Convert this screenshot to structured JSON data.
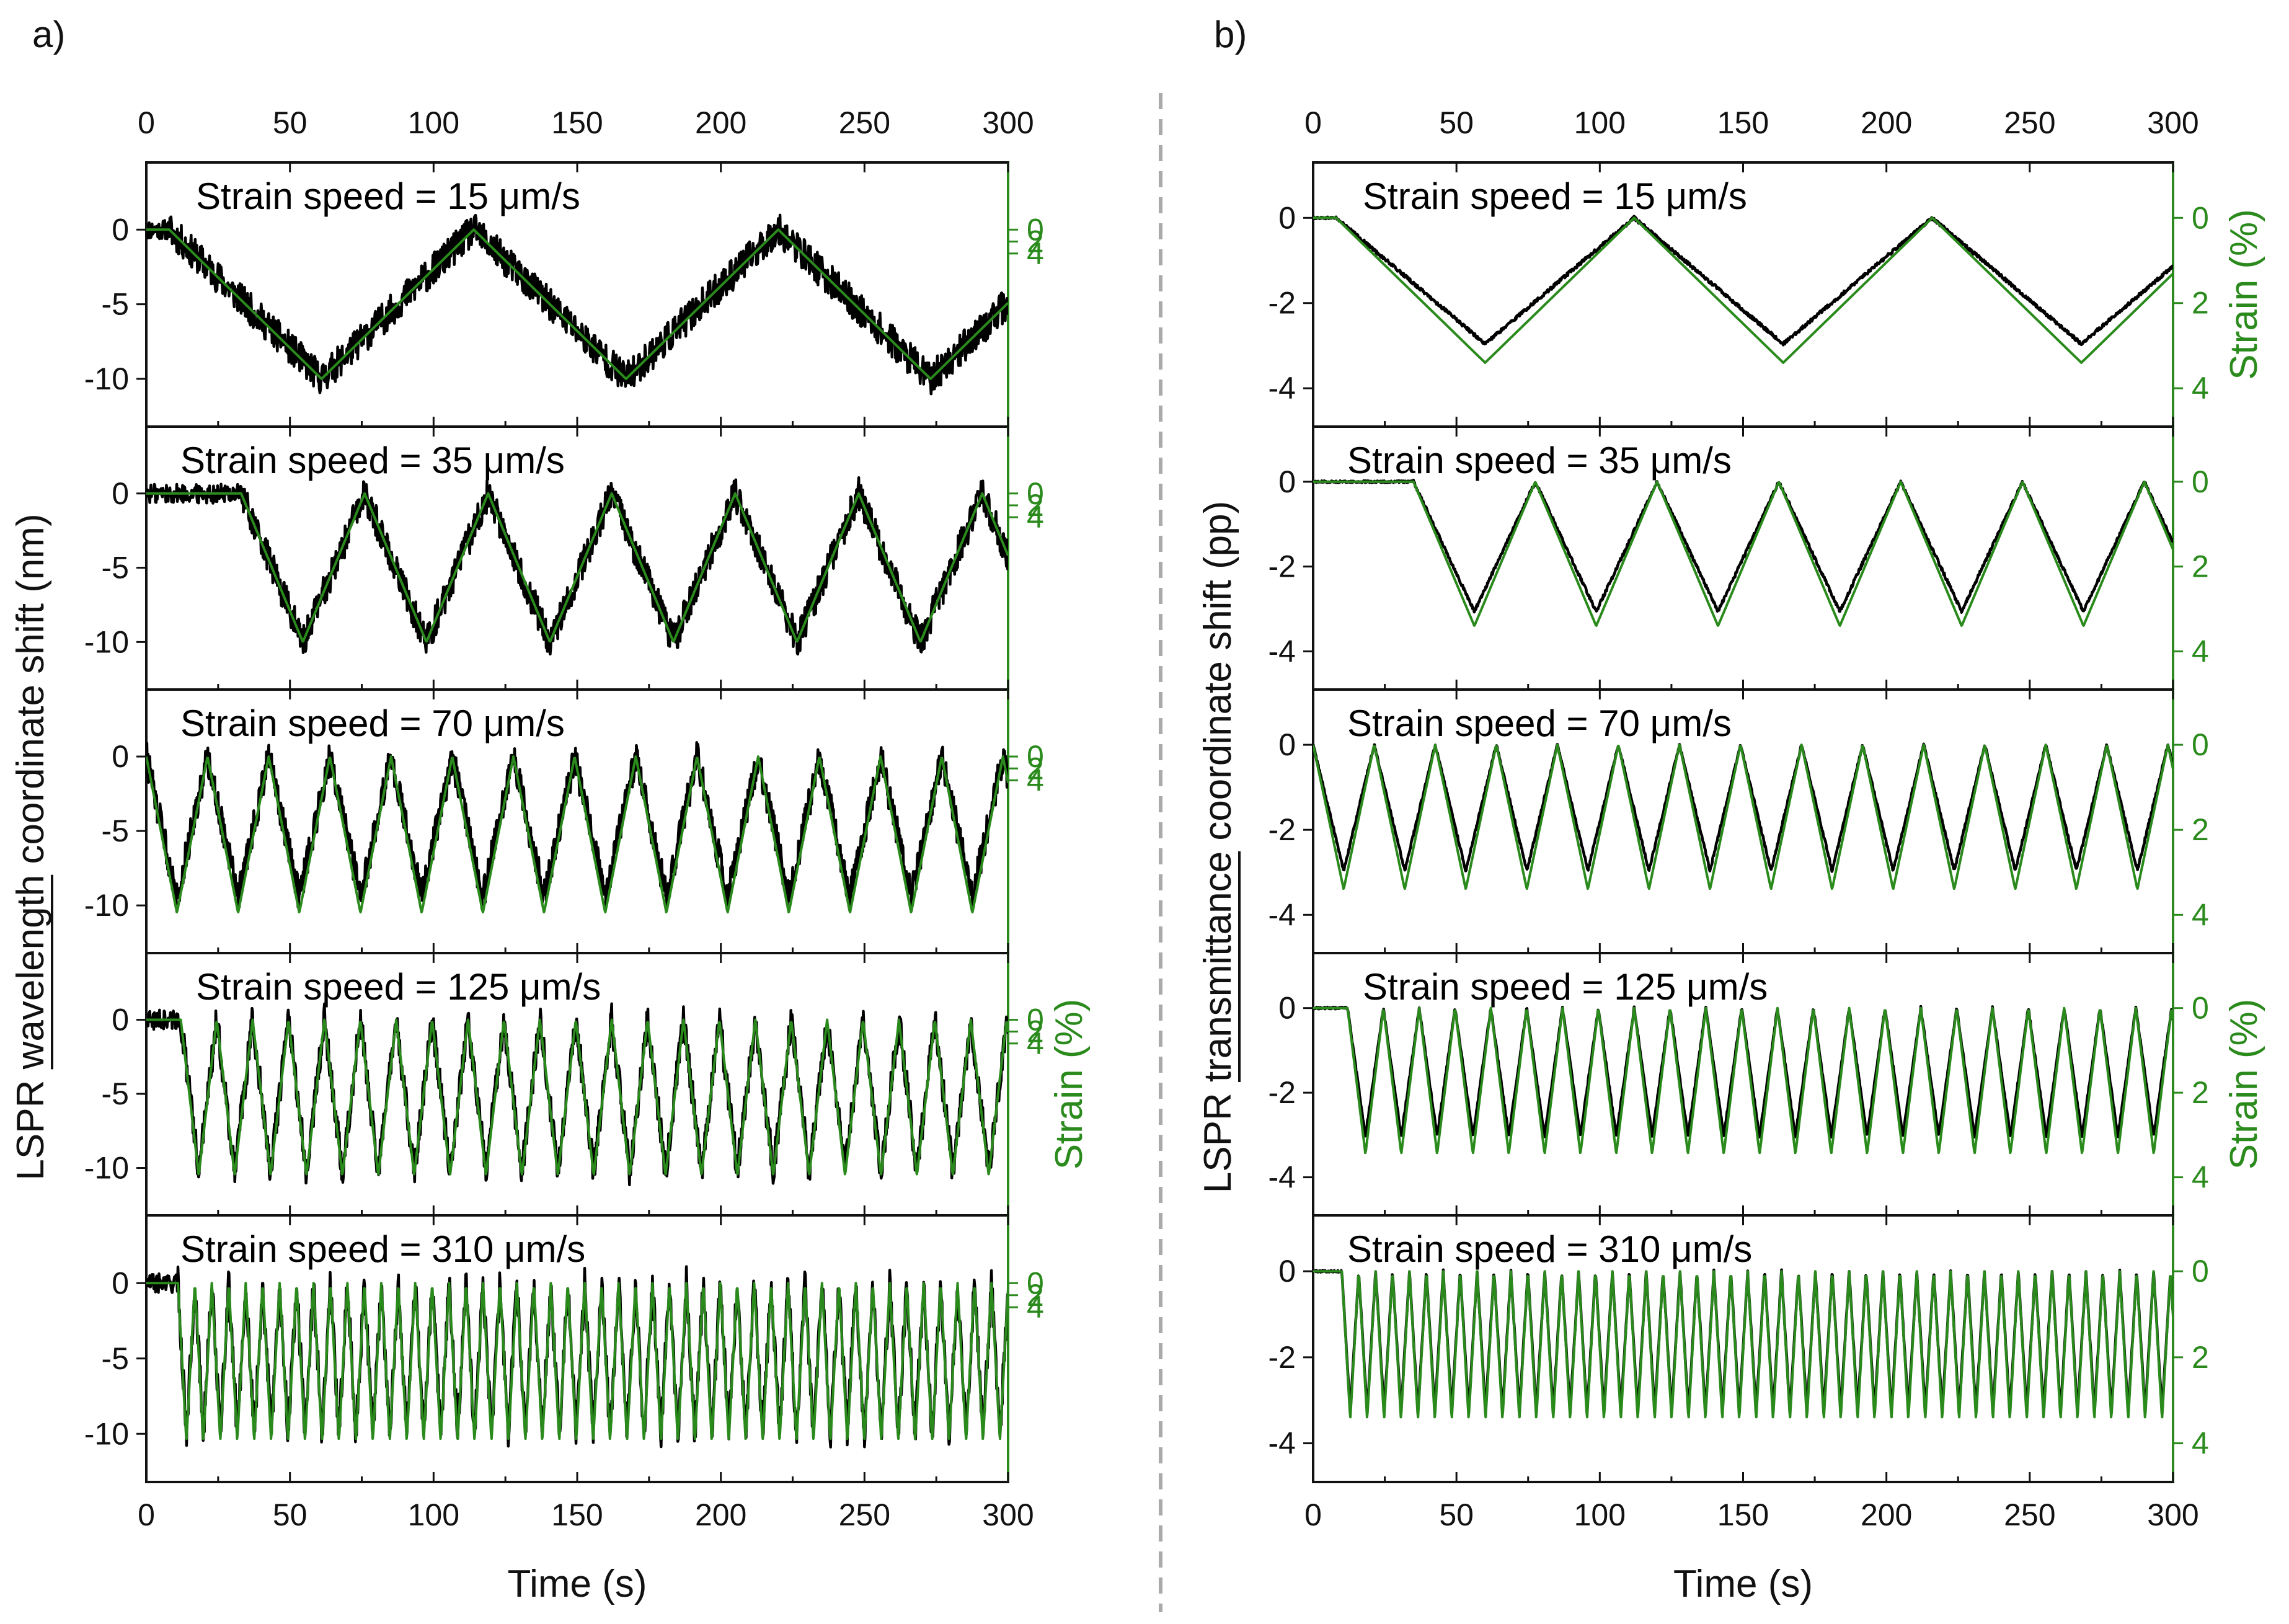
{
  "figure": {
    "separator": "dashed-vertical",
    "colors": {
      "measured": "#000000",
      "strain": "#2a8a1c",
      "separator": "#aaaaaa"
    }
  },
  "chart_data": [
    {
      "panel_label": "a)",
      "type": "line",
      "top_axis_ticks": [
        "0",
        "50",
        "100",
        "150",
        "200",
        "250",
        "300"
      ],
      "bottom_axis_ticks": [
        "0",
        "50",
        "100",
        "150",
        "200",
        "250",
        "300"
      ],
      "xlim": [
        0,
        300
      ],
      "xlabel": "Time (s)",
      "ylabel": "LSPR wavelength coordinate shift (nm)",
      "ylabel_underlined_word": "wavelength",
      "y2label": "Strain (%)",
      "y2label_visible_on": [
        3
      ],
      "ylim": [
        -13.2,
        4.5
      ],
      "yticks": [
        -10,
        -5,
        0
      ],
      "ytick_labels": [
        "-10",
        "-5",
        "0"
      ],
      "y2ticks": [
        0,
        2,
        4
      ],
      "y2tick_labels": [
        "0",
        "2",
        "4"
      ],
      "strain_per_unit": -2.5,
      "noise": 1.1,
      "subplots": [
        {
          "title": "Strain speed = 15 μm/s",
          "speed": 15,
          "onset": 8,
          "amplitude": -10.0,
          "period": 106,
          "response_ratio": 1.0,
          "series": [
            {
              "name": "LSPR shift",
              "color": "#000000"
            },
            {
              "name": "Strain",
              "color": "#2a8a1c"
            }
          ]
        },
        {
          "title": "Strain speed = 35 μm/s",
          "speed": 35,
          "onset": 33,
          "amplitude": -10.0,
          "period": 43,
          "response_ratio": 1.0,
          "series": [
            {
              "name": "LSPR shift",
              "color": "#000000"
            },
            {
              "name": "Strain",
              "color": "#2a8a1c"
            }
          ]
        },
        {
          "title": "Strain speed = 70 μm/s",
          "speed": 70,
          "onset": 0,
          "amplitude": -10.5,
          "period": 21.3,
          "response_ratio": 0.9,
          "series": [
            {
              "name": "LSPR shift",
              "color": "#000000"
            },
            {
              "name": "Strain",
              "color": "#2a8a1c"
            }
          ]
        },
        {
          "title": "Strain speed = 125 μm/s",
          "speed": 125,
          "onset": 12,
          "amplitude": -10.5,
          "period": 12.5,
          "response_ratio": 0.97,
          "series": [
            {
              "name": "LSPR shift",
              "color": "#000000"
            },
            {
              "name": "Strain",
              "color": "#2a8a1c"
            }
          ]
        },
        {
          "title": "Strain speed = 310 μm/s",
          "speed": 310,
          "onset": 11,
          "amplitude": -10.5,
          "period": 5.9,
          "response_ratio": 0.95,
          "series": [
            {
              "name": "LSPR shift",
              "color": "#000000"
            },
            {
              "name": "Strain",
              "color": "#2a8a1c"
            }
          ]
        }
      ]
    },
    {
      "panel_label": "b)",
      "type": "line",
      "top_axis_ticks": [
        "0",
        "50",
        "100",
        "150",
        "200",
        "250",
        "300"
      ],
      "bottom_axis_ticks": [
        "0",
        "50",
        "100",
        "150",
        "200",
        "250",
        "300"
      ],
      "xlim": [
        0,
        300
      ],
      "xlabel": "Time (s)",
      "ylabel": "LSPR transmittance coordinate shift (pp)",
      "ylabel_underlined_word": "transmittance",
      "y2label": "Strain (%)",
      "y2label_visible_on": [
        0,
        3
      ],
      "ylim": [
        -4.9,
        1.3
      ],
      "yticks": [
        -4,
        -2,
        0
      ],
      "ytick_labels": [
        "-4",
        "-2",
        "0"
      ],
      "y2ticks": [
        0,
        2,
        4
      ],
      "y2tick_labels": [
        "0",
        "2",
        "4"
      ],
      "strain_per_unit": -1.0,
      "noise": 0.04,
      "subplots": [
        {
          "title": "Strain speed = 15 μm/s",
          "speed": 15,
          "onset": 8,
          "amplitude": -3.4,
          "period": 104,
          "response_ratio": 0.87,
          "series": [
            {
              "name": "LSPR shift",
              "color": "#000000"
            },
            {
              "name": "Strain",
              "color": "#2a8a1c"
            }
          ]
        },
        {
          "title": "Strain speed = 35 μm/s",
          "speed": 35,
          "onset": 35,
          "amplitude": -3.4,
          "period": 42.5,
          "response_ratio": 0.9,
          "series": [
            {
              "name": "LSPR shift",
              "color": "#000000"
            },
            {
              "name": "Strain",
              "color": "#2a8a1c"
            }
          ]
        },
        {
          "title": "Strain speed = 70 μm/s",
          "speed": 70,
          "onset": 0,
          "amplitude": -3.4,
          "period": 21.3,
          "response_ratio": 0.87,
          "series": [
            {
              "name": "LSPR shift",
              "color": "#000000"
            },
            {
              "name": "Strain",
              "color": "#2a8a1c"
            }
          ]
        },
        {
          "title": "Strain speed = 125 μm/s",
          "speed": 125,
          "onset": 12,
          "amplitude": -3.45,
          "period": 12.5,
          "response_ratio": 0.88,
          "series": [
            {
              "name": "LSPR shift",
              "color": "#000000"
            },
            {
              "name": "Strain",
              "color": "#2a8a1c"
            }
          ]
        },
        {
          "title": "Strain speed = 310 μm/s",
          "speed": 310,
          "onset": 10,
          "amplitude": -3.45,
          "period": 5.9,
          "response_ratio": 0.95,
          "series": [
            {
              "name": "LSPR shift",
              "color": "#000000"
            },
            {
              "name": "Strain",
              "color": "#2a8a1c"
            }
          ]
        }
      ]
    }
  ]
}
